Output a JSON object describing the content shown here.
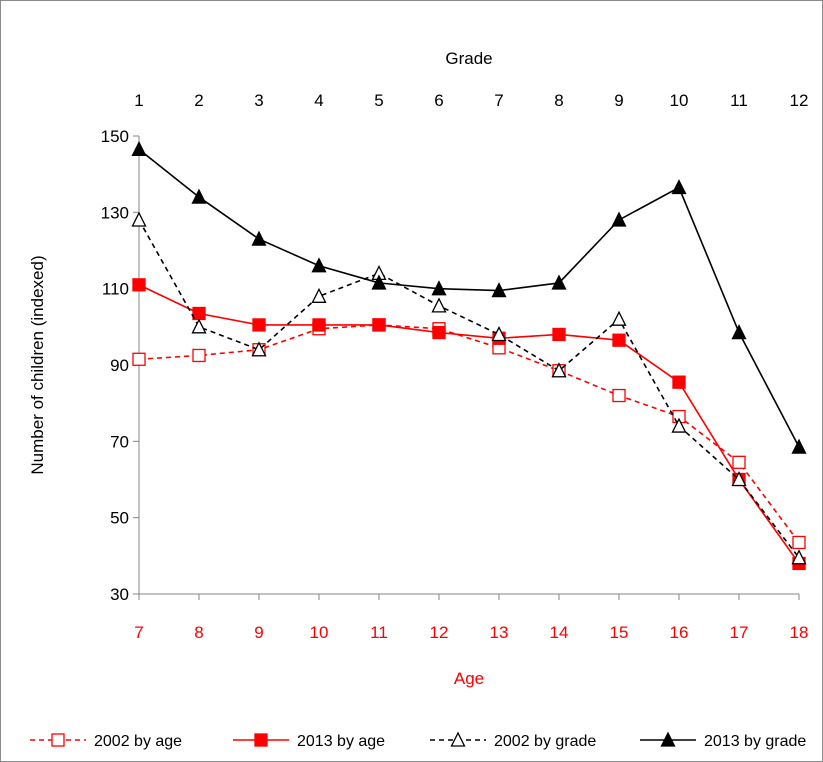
{
  "chart_data": {
    "type": "line",
    "top_axis": {
      "title": "Grade",
      "ticks": [
        "1",
        "2",
        "3",
        "4",
        "5",
        "6",
        "7",
        "8",
        "9",
        "10",
        "11",
        "12"
      ]
    },
    "x_axis": {
      "title": "Age",
      "ticks": [
        "7",
        "8",
        "9",
        "10",
        "11",
        "12",
        "13",
        "14",
        "15",
        "16",
        "17",
        "18"
      ],
      "color": "#ff0000"
    },
    "y_axis": {
      "title": "Number of children (indexed)",
      "ticks": [
        "30",
        "50",
        "70",
        "90",
        "110",
        "130",
        "150"
      ],
      "ylim": [
        30,
        150
      ]
    },
    "grid": false,
    "legend_position": "bottom",
    "series": [
      {
        "name": "2002 by age",
        "color": "#ff0000",
        "dashed": true,
        "marker": "square-open",
        "values": [
          91.5,
          92.5,
          94,
          99.5,
          100.5,
          99.5,
          94.5,
          88.5,
          82,
          76.5,
          64.5,
          43.5
        ]
      },
      {
        "name": "2013 by age",
        "color": "#ff0000",
        "dashed": false,
        "marker": "square-filled",
        "values": [
          111,
          103.5,
          100.5,
          100.5,
          100.5,
          98.5,
          97,
          98,
          96.5,
          85.5,
          60,
          38
        ]
      },
      {
        "name": "2002 by grade",
        "color": "#000000",
        "dashed": true,
        "marker": "triangle-open",
        "values": [
          128,
          100,
          94,
          108,
          114,
          105.5,
          98,
          88.5,
          102,
          74,
          60,
          39.5
        ]
      },
      {
        "name": "2013 by grade",
        "color": "#000000",
        "dashed": false,
        "marker": "triangle-filled",
        "values": [
          146.5,
          134,
          123,
          116,
          111.5,
          110,
          109.5,
          111.5,
          128,
          136.5,
          98.5,
          68.5
        ]
      }
    ]
  }
}
